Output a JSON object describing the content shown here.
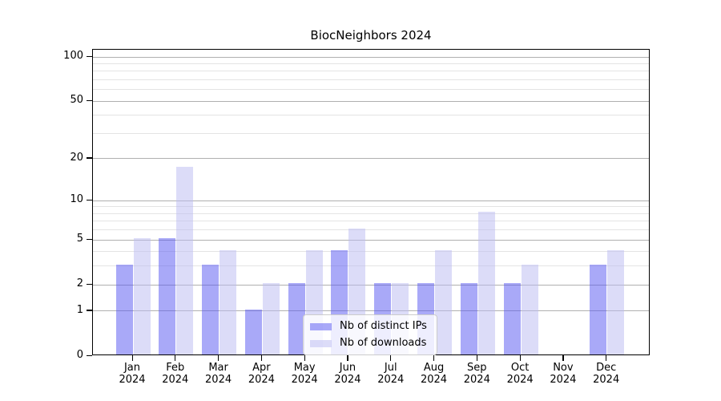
{
  "title": "BiocNeighbors 2024",
  "chart_data": {
    "type": "bar",
    "title": "BiocNeighbors 2024",
    "categories": [
      "Jan",
      "Feb",
      "Mar",
      "Apr",
      "May",
      "Jun",
      "Jul",
      "Aug",
      "Sep",
      "Oct",
      "Nov",
      "Dec"
    ],
    "xlabel_year": "2024",
    "series": [
      {
        "name": "Nb of distinct IPs",
        "values": [
          3,
          5,
          3,
          1,
          2,
          4,
          2,
          2,
          2,
          2,
          0,
          3
        ],
        "color": "rgba(83,83,241,0.5)"
      },
      {
        "name": "Nb of downloads",
        "values": [
          5,
          17,
          4,
          2,
          4,
          6,
          2,
          4,
          8,
          3,
          0,
          4
        ],
        "color": "rgba(185,185,241,0.5)"
      }
    ],
    "yscale": "log1p",
    "ylim": [
      0,
      112
    ],
    "yticks": [
      0,
      1,
      2,
      5,
      10,
      20,
      50,
      100
    ],
    "yticks_minor": [
      3,
      4,
      6,
      7,
      8,
      9,
      30,
      40,
      60,
      70,
      80,
      90
    ],
    "grid": true,
    "legend_position": "lower center",
    "legend_labels": [
      "Nb of distinct IPs",
      "Nb of downloads"
    ]
  },
  "colors": {
    "bar_ips": "rgba(83,83,241,0.5)",
    "bar_downloads": "rgba(185,185,241,0.5)",
    "grid_major": "#b0b0b0",
    "grid_minor": "#e4e4e4",
    "axis": "#000000",
    "legend_border": "#cccccc",
    "legend_bg": "rgba(255,255,255,0.8)"
  }
}
